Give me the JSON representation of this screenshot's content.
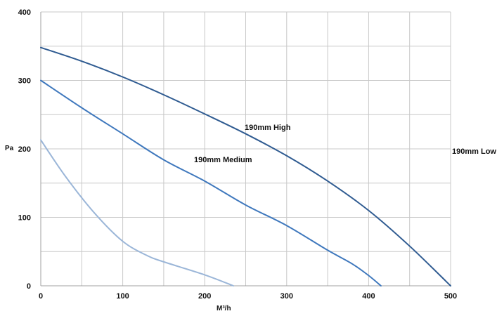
{
  "chart_data": {
    "type": "line",
    "title": "",
    "xlabel": "M³/h",
    "ylabel": "Pa",
    "xlim": [
      0,
      500
    ],
    "ylim": [
      0,
      400
    ],
    "x_ticks": [
      0,
      100,
      200,
      300,
      400,
      500
    ],
    "y_ticks": [
      0,
      100,
      200,
      300,
      400
    ],
    "x_tick_labels": [
      "0",
      "100",
      "200",
      "300",
      "400",
      "500"
    ],
    "y_tick_labels": [
      "0",
      "100",
      "200",
      "300",
      "400"
    ],
    "grid": true,
    "series": [
      {
        "name": "190mm High",
        "color": "#2f5b91",
        "points": [
          [
            0,
            348
          ],
          [
            50,
            328
          ],
          [
            100,
            305
          ],
          [
            150,
            279
          ],
          [
            200,
            251
          ],
          [
            250,
            222
          ],
          [
            300,
            190
          ],
          [
            350,
            153
          ],
          [
            400,
            110
          ],
          [
            450,
            58
          ],
          [
            500,
            0
          ]
        ]
      },
      {
        "name": "190mm Medium",
        "color": "#3f78bd",
        "points": [
          [
            0,
            300
          ],
          [
            50,
            260
          ],
          [
            100,
            222
          ],
          [
            150,
            184
          ],
          [
            200,
            153
          ],
          [
            250,
            118
          ],
          [
            300,
            88
          ],
          [
            350,
            52
          ],
          [
            380,
            32
          ],
          [
            400,
            15
          ],
          [
            415,
            0
          ]
        ]
      },
      {
        "name": "190mm Low",
        "color": "#9bb6d8",
        "points": [
          [
            0,
            213
          ],
          [
            30,
            160
          ],
          [
            65,
            107
          ],
          [
            100,
            65
          ],
          [
            130,
            44
          ],
          [
            150,
            35
          ],
          [
            200,
            16
          ],
          [
            235,
            0
          ]
        ]
      }
    ]
  }
}
